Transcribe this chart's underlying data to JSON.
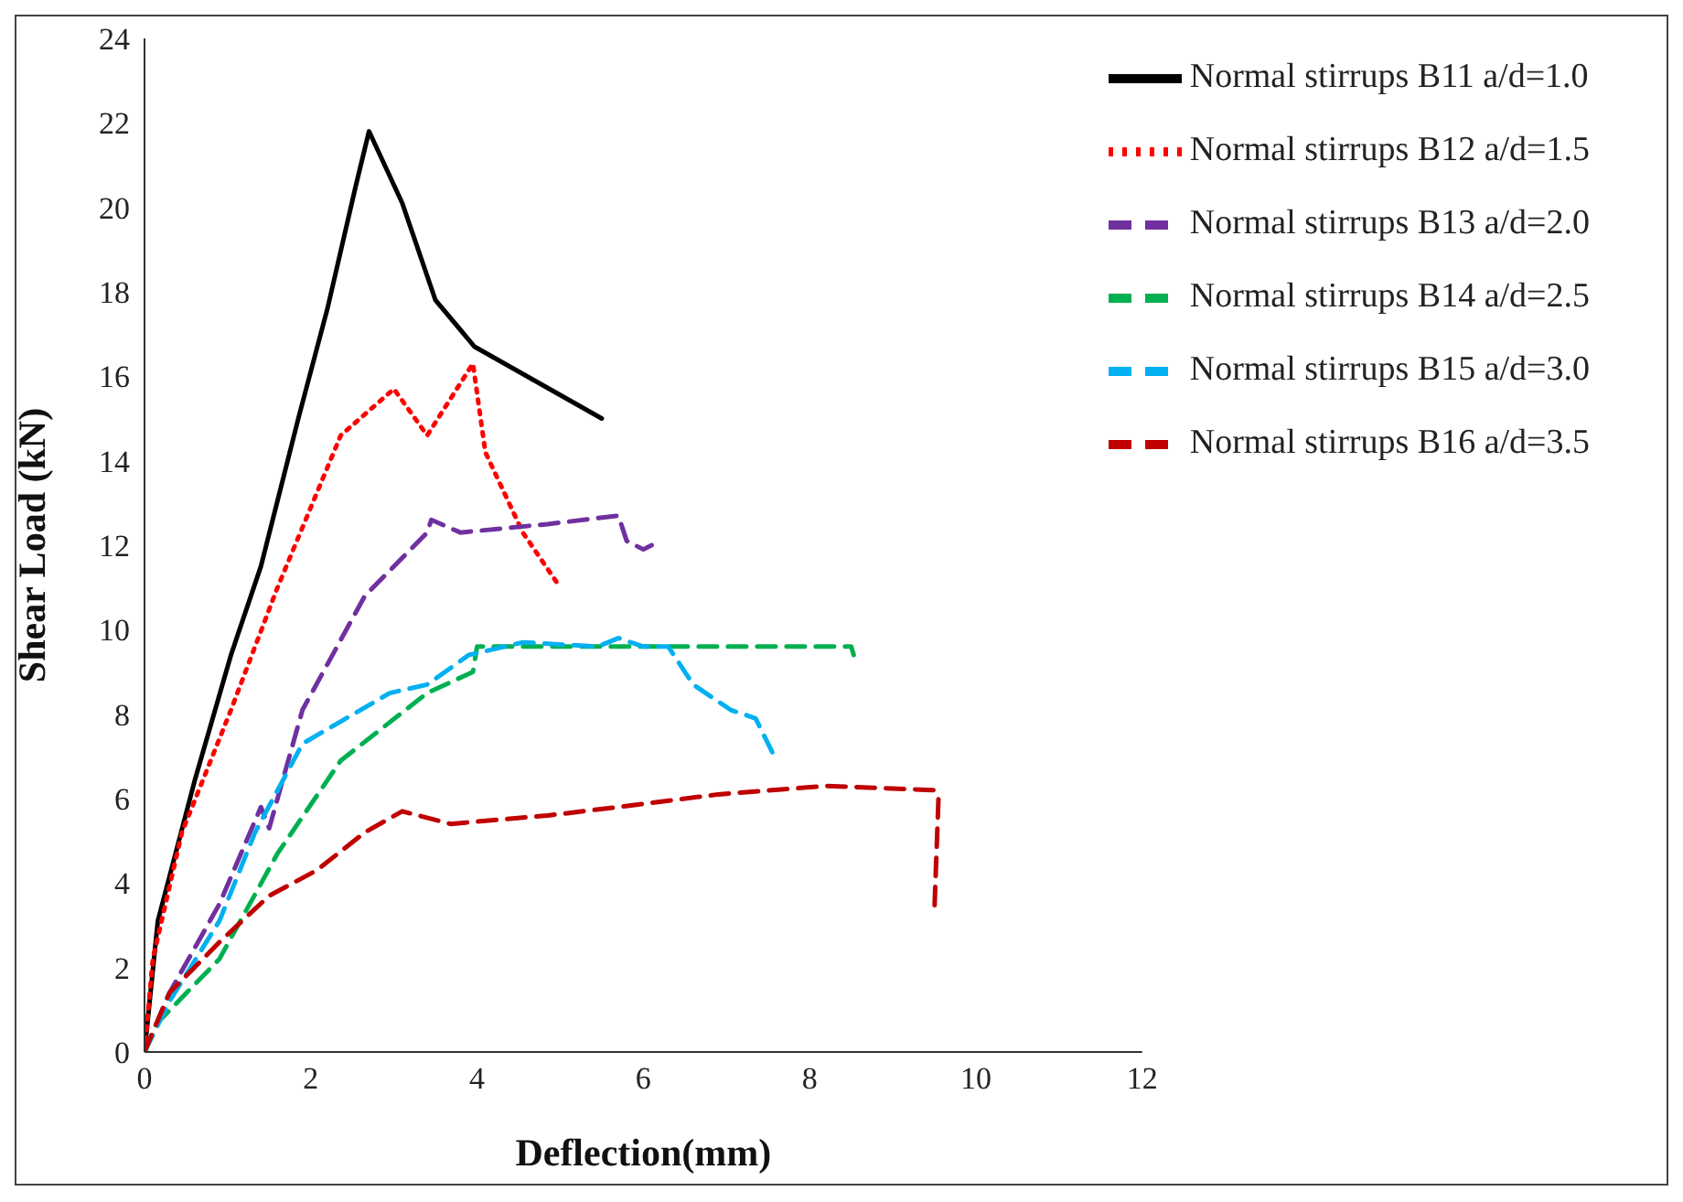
{
  "chart_data": {
    "type": "line",
    "xlabel": "Deflection(mm)",
    "ylabel": "Shear Load (kN)",
    "xlim": [
      0,
      12
    ],
    "xticks": [
      0,
      2,
      4,
      6,
      8,
      10,
      12
    ],
    "ylim": [
      0,
      24
    ],
    "yticks": [
      0,
      2,
      4,
      6,
      8,
      10,
      12,
      14,
      16,
      18,
      20,
      22,
      24
    ],
    "grid": false,
    "legend": "top right",
    "marker": "none",
    "series": [
      {
        "name": "Normal stirrups B11 a/d=1.0",
        "color": "#000000",
        "line_style": "solid",
        "x": [
          0,
          0.16,
          0.6,
          1.04,
          1.4,
          1.85,
          2.2,
          2.54,
          2.7,
          3.1,
          3.5,
          3.97,
          5.5
        ],
        "values": [
          0,
          3.1,
          6.4,
          9.4,
          11.5,
          15.0,
          17.6,
          20.5,
          21.8,
          20.1,
          17.8,
          16.7,
          15.0
        ]
      },
      {
        "name": "Normal stirrups B12 a/d=1.5",
        "color": "#ff0000",
        "line_style": "dotted",
        "x": [
          0,
          0.1,
          0.45,
          1.04,
          1.6,
          2.36,
          3.0,
          3.4,
          3.95,
          4.1,
          4.55,
          5.0
        ],
        "values": [
          0,
          2.2,
          5.2,
          8.1,
          11.0,
          14.6,
          15.7,
          14.6,
          16.3,
          14.2,
          12.3,
          11.0
        ]
      },
      {
        "name": "Normal stirrups B13 a/d=2.0",
        "color": "#7030a0",
        "line_style": "dashed",
        "x": [
          0,
          0.3,
          0.9,
          1.4,
          1.5,
          1.9,
          2.65,
          3.4,
          3.45,
          3.8,
          4.85,
          5.7,
          5.8,
          6.0,
          6.1
        ],
        "values": [
          0,
          1.4,
          3.5,
          5.8,
          5.3,
          8.1,
          10.8,
          12.3,
          12.6,
          12.3,
          12.5,
          12.7,
          12.1,
          11.9,
          12.0
        ]
      },
      {
        "name": "Normal stirrups B14 a/d=2.5",
        "color": "#00b050",
        "line_style": "dashed",
        "x": [
          0,
          0.16,
          0.9,
          1.6,
          2.36,
          3.4,
          3.95,
          4.0,
          4.55,
          7.5,
          8.5,
          8.53
        ],
        "values": [
          0,
          0.7,
          2.2,
          4.7,
          6.9,
          8.5,
          9.0,
          9.6,
          9.6,
          9.6,
          9.6,
          9.4
        ]
      },
      {
        "name": "Normal stirrups B15 a/d=3.0",
        "color": "#00b0f0",
        "line_style": "dashed",
        "x": [
          0,
          0.3,
          0.9,
          1.33,
          1.9,
          2.95,
          3.4,
          3.9,
          4.55,
          5.45,
          5.7,
          6.0,
          6.3,
          6.6,
          7.05,
          7.35,
          7.55
        ],
        "values": [
          0,
          1.2,
          3.1,
          5.2,
          7.3,
          8.5,
          8.7,
          9.4,
          9.7,
          9.6,
          9.8,
          9.6,
          9.6,
          8.7,
          8.1,
          7.9,
          7.1
        ]
      },
      {
        "name": "Normal stirrups B16  a/d=3.5",
        "color": "#c00000",
        "line_style": "dashed",
        "x": [
          0,
          0.3,
          0.9,
          1.5,
          2.07,
          2.65,
          3.1,
          3.68,
          4.85,
          5.7,
          6.9,
          8.2,
          9.5,
          9.55,
          9.5
        ],
        "values": [
          0,
          1.4,
          2.6,
          3.7,
          4.3,
          5.2,
          5.7,
          5.4,
          5.6,
          5.8,
          6.1,
          6.3,
          6.2,
          6.0,
          3.3
        ]
      }
    ]
  }
}
